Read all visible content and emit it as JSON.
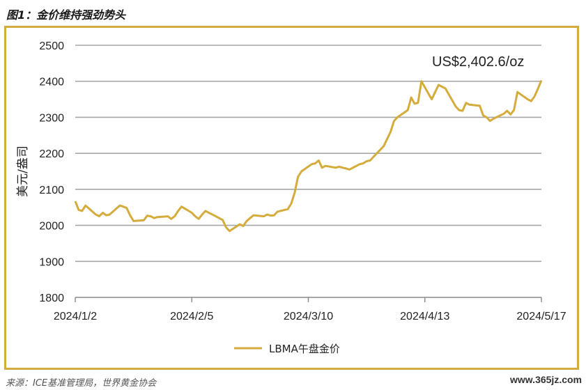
{
  "title": "图1：金价维持强劲势头",
  "source": "来源：ICE基准管理局，世界黄金协会",
  "watermark": "www.365jz.com",
  "colors": {
    "line": "#d4ac3c",
    "frame": "#d4ac3c",
    "grid": "#a6a6a6"
  },
  "chart_data": {
    "type": "line",
    "ylabel": "美元/盎司",
    "ylim": [
      1800,
      2500
    ],
    "yticks": [
      1800,
      1900,
      2000,
      2100,
      2200,
      2300,
      2400,
      2500
    ],
    "xticks": [
      "2024/1/2",
      "2024/2/5",
      "2024/3/10",
      "2024/4/13",
      "2024/5/17"
    ],
    "grid": true,
    "legend_position": "bottom-center",
    "annotation": "US$2,402.6/oz",
    "series": [
      {
        "name": "LBMA午盘金价",
        "points": [
          [
            "2024/1/2",
            2067
          ],
          [
            "2024/1/3",
            2043
          ],
          [
            "2024/1/4",
            2040
          ],
          [
            "2024/1/5",
            2055
          ],
          [
            "2024/1/8",
            2030
          ],
          [
            "2024/1/9",
            2025
          ],
          [
            "2024/1/10",
            2035
          ],
          [
            "2024/1/11",
            2028
          ],
          [
            "2024/1/12",
            2030
          ],
          [
            "2024/1/15",
            2055
          ],
          [
            "2024/1/16",
            2052
          ],
          [
            "2024/1/17",
            2048
          ],
          [
            "2024/1/18",
            2028
          ],
          [
            "2024/1/19",
            2012
          ],
          [
            "2024/1/22",
            2014
          ],
          [
            "2024/1/23",
            2027
          ],
          [
            "2024/1/24",
            2025
          ],
          [
            "2024/1/25",
            2020
          ],
          [
            "2024/1/26",
            2023
          ],
          [
            "2024/1/29",
            2025
          ],
          [
            "2024/1/30",
            2018
          ],
          [
            "2024/1/31",
            2025
          ],
          [
            "2024/2/1",
            2040
          ],
          [
            "2024/2/2",
            2052
          ],
          [
            "2024/2/5",
            2035
          ],
          [
            "2024/2/6",
            2025
          ],
          [
            "2024/2/7",
            2018
          ],
          [
            "2024/2/8",
            2030
          ],
          [
            "2024/2/9",
            2040
          ],
          [
            "2024/2/12",
            2025
          ],
          [
            "2024/2/13",
            2020
          ],
          [
            "2024/2/14",
            2015
          ],
          [
            "2024/2/15",
            1995
          ],
          [
            "2024/2/16",
            1984
          ],
          [
            "2024/2/19",
            2003
          ],
          [
            "2024/2/20",
            1998
          ],
          [
            "2024/2/21",
            2012
          ],
          [
            "2024/2/22",
            2020
          ],
          [
            "2024/2/23",
            2028
          ],
          [
            "2024/2/26",
            2025
          ],
          [
            "2024/2/27",
            2030
          ],
          [
            "2024/2/28",
            2027
          ],
          [
            "2024/2/29",
            2028
          ],
          [
            "2024/3/1",
            2038
          ],
          [
            "2024/3/4",
            2045
          ],
          [
            "2024/3/5",
            2060
          ],
          [
            "2024/3/6",
            2090
          ],
          [
            "2024/3/7",
            2135
          ],
          [
            "2024/3/8",
            2150
          ],
          [
            "2024/3/11",
            2170
          ],
          [
            "2024/3/12",
            2172
          ],
          [
            "2024/3/13",
            2180
          ],
          [
            "2024/3/14",
            2160
          ],
          [
            "2024/3/15",
            2165
          ],
          [
            "2024/3/18",
            2160
          ],
          [
            "2024/3/19",
            2163
          ],
          [
            "2024/3/20",
            2160
          ],
          [
            "2024/3/21",
            2158
          ],
          [
            "2024/3/22",
            2155
          ],
          [
            "2024/3/25",
            2170
          ],
          [
            "2024/3/26",
            2172
          ],
          [
            "2024/3/27",
            2178
          ],
          [
            "2024/3/28",
            2180
          ],
          [
            "2024/4/1",
            2220
          ],
          [
            "2024/4/2",
            2240
          ],
          [
            "2024/4/3",
            2260
          ],
          [
            "2024/4/4",
            2290
          ],
          [
            "2024/4/5",
            2300
          ],
          [
            "2024/4/8",
            2320
          ],
          [
            "2024/4/9",
            2355
          ],
          [
            "2024/4/10",
            2338
          ],
          [
            "2024/4/11",
            2340
          ],
          [
            "2024/4/12",
            2400
          ],
          [
            "2024/4/15",
            2350
          ],
          [
            "2024/4/16",
            2370
          ],
          [
            "2024/4/17",
            2390
          ],
          [
            "2024/4/18",
            2385
          ],
          [
            "2024/4/19",
            2380
          ],
          [
            "2024/4/22",
            2330
          ],
          [
            "2024/4/23",
            2320
          ],
          [
            "2024/4/24",
            2318
          ],
          [
            "2024/4/25",
            2340
          ],
          [
            "2024/4/26",
            2335
          ],
          [
            "2024/4/29",
            2332
          ],
          [
            "2024/4/30",
            2305
          ],
          [
            "2024/5/1",
            2300
          ],
          [
            "2024/5/2",
            2290
          ],
          [
            "2024/5/3",
            2296
          ],
          [
            "2024/5/6",
            2310
          ],
          [
            "2024/5/7",
            2318
          ],
          [
            "2024/5/8",
            2308
          ],
          [
            "2024/5/9",
            2320
          ],
          [
            "2024/5/10",
            2370
          ],
          [
            "2024/5/13",
            2350
          ],
          [
            "2024/5/14",
            2345
          ],
          [
            "2024/5/15",
            2358
          ],
          [
            "2024/5/16",
            2380
          ],
          [
            "2024/5/17",
            2402.6
          ]
        ]
      }
    ]
  }
}
